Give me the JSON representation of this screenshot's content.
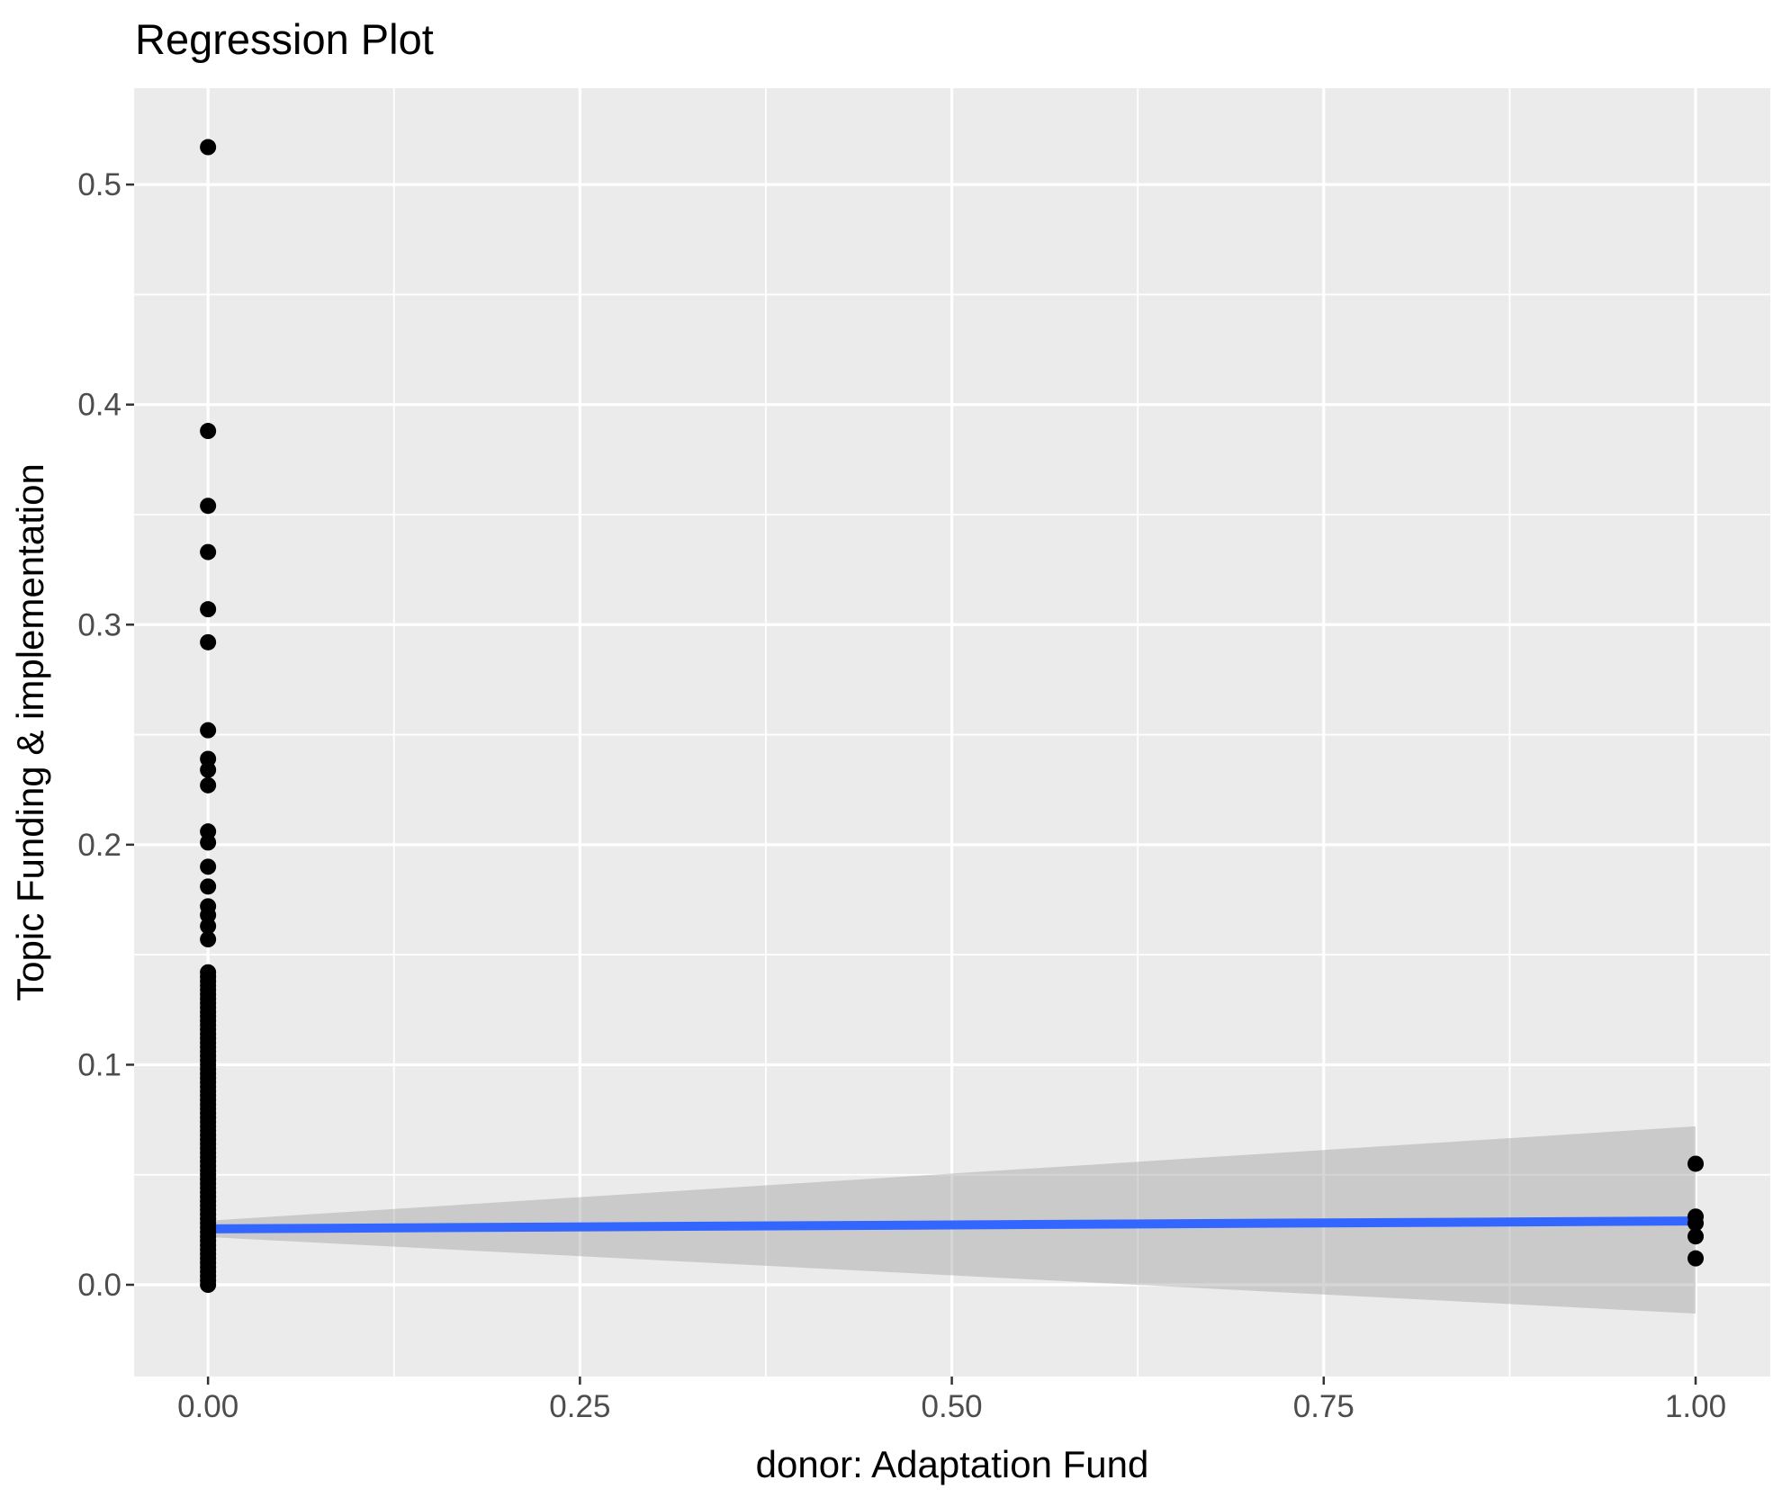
{
  "colors": {
    "background": "#FFFFFF",
    "panel": "#EBEBEB",
    "grid": "#FFFFFF",
    "point": "#000000",
    "regression_line": "#3366FF",
    "confidence_band": "rgba(153,153,153,0.4)",
    "tick_label": "#4D4D4D",
    "tick_mark": "#333333",
    "title": "#000000"
  },
  "chart_data": {
    "type": "scatter",
    "title": "Regression Plot",
    "xlabel": "donor: Adaptation Fund",
    "ylabel": "Topic Funding & implementation",
    "legend": false,
    "grid": "major+minor white on gray panel",
    "xlim": [
      -0.0497,
      1.0502
    ],
    "ylim": [
      -0.0417,
      0.5438
    ],
    "x_tick_values": [
      0,
      0.25,
      0.5,
      0.75,
      1
    ],
    "x_tick_labels": [
      "0.00",
      "0.25",
      "0.50",
      "0.75",
      "1.00"
    ],
    "y_tick_values": [
      0,
      0.1,
      0.2,
      0.3,
      0.4,
      0.5
    ],
    "y_tick_labels": [
      "0.0",
      "0.1",
      "0.2",
      "0.3",
      "0.4",
      "0.5"
    ],
    "x_minor_values": [
      0.125,
      0.375,
      0.625,
      0.875
    ],
    "y_minor_values": [
      0.05,
      0.15,
      0.25,
      0.35,
      0.45
    ],
    "series": [
      {
        "name": "donor = 0",
        "x": 0,
        "points": [
          0.517,
          0.388,
          0.354,
          0.333,
          0.307,
          0.292,
          0.252,
          0.239,
          0.234,
          0.227,
          0.206,
          0.201,
          0.19,
          0.181,
          0.172,
          0.168,
          0.163,
          0.157,
          0.142,
          0.14,
          0.138,
          0.136,
          0.134,
          0.132,
          0.13,
          0.128,
          0.126,
          0.124,
          0.122,
          0.12,
          0.118,
          0.116,
          0.114,
          0.112,
          0.11,
          0.108,
          0.106,
          0.104,
          0.102,
          0.1,
          0.098,
          0.096,
          0.094,
          0.092,
          0.09,
          0.088,
          0.086,
          0.084,
          0.082,
          0.08,
          0.078,
          0.076,
          0.074,
          0.072,
          0.07,
          0.068,
          0.066,
          0.064,
          0.062,
          0.06,
          0.058,
          0.056,
          0.054,
          0.052,
          0.05,
          0.048,
          0.046,
          0.044,
          0.042,
          0.04,
          0.038,
          0.036,
          0.034,
          0.032,
          0.03,
          0.028,
          0.026,
          0.024,
          0.022,
          0.02,
          0.018,
          0.016,
          0.014,
          0.012,
          0.01,
          0.008,
          0.006,
          0.004,
          0.002,
          0.0
        ]
      },
      {
        "name": "donor = 1",
        "x": 1,
        "points": [
          0.055,
          0.031,
          0.028,
          0.022,
          0.012
        ]
      }
    ],
    "regression_line": {
      "x0": 0,
      "y0": 0.0254,
      "x1": 1,
      "y1": 0.029
    },
    "confidence_band": {
      "x0": 0,
      "upper0": 0.0291,
      "lower0": 0.0217,
      "x1": 1,
      "upper1": 0.072,
      "lower1": -0.0131
    }
  }
}
